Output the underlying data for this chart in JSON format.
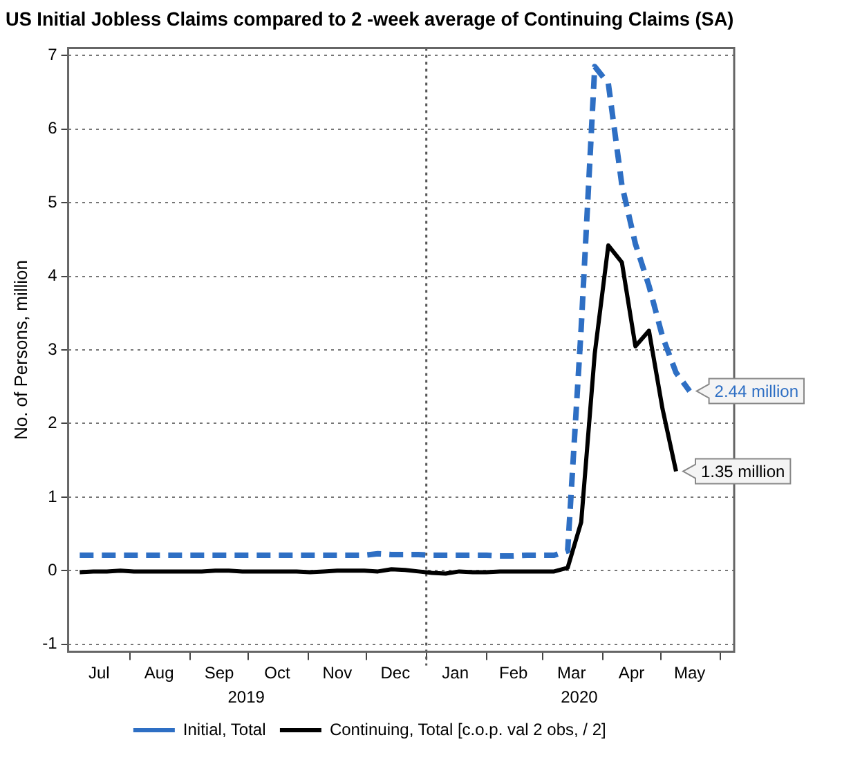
{
  "chart_data": {
    "type": "line",
    "title": "US Initial Jobless Claims compared to 2 -week average of Continuing Claims (SA)",
    "ylabel": "No. of Persons, million",
    "xlim": [
      "2019-06-30",
      "2020-06-08"
    ],
    "xticks": [
      {
        "value": "2019-07-16",
        "label": "Jul"
      },
      {
        "value": "2019-08-01",
        "label": null
      },
      {
        "value": "2019-08-16",
        "label": "Aug"
      },
      {
        "value": "2019-09-01",
        "label": null
      },
      {
        "value": "2019-09-16",
        "label": "Sep"
      },
      {
        "value": "2019-10-01",
        "label": null
      },
      {
        "value": "2019-10-16",
        "label": "Oct"
      },
      {
        "value": "2019-11-01",
        "label": null
      },
      {
        "value": "2019-11-16",
        "label": "Nov"
      },
      {
        "value": "2019-12-01",
        "label": null
      },
      {
        "value": "2019-12-16",
        "label": "Dec"
      },
      {
        "value": "2020-01-01",
        "label": null
      },
      {
        "value": "2020-01-16",
        "label": "Jan"
      },
      {
        "value": "2020-02-01",
        "label": null
      },
      {
        "value": "2020-02-15",
        "label": "Feb"
      },
      {
        "value": "2020-03-01",
        "label": null
      },
      {
        "value": "2020-03-16",
        "label": "Mar"
      },
      {
        "value": "2020-04-01",
        "label": null
      },
      {
        "value": "2020-04-16",
        "label": "Apr"
      },
      {
        "value": "2020-05-01",
        "label": null
      },
      {
        "value": "2020-05-16",
        "label": "May"
      },
      {
        "value": "2020-06-01",
        "label": null
      }
    ],
    "x2lim": [
      "2019-06-30",
      "2020-06-08"
    ],
    "x2ticks": [
      {
        "value": "2019-09-30",
        "label": "2019"
      },
      {
        "value": "2020-03-20",
        "label": "2020"
      }
    ],
    "ylim": [
      -1.1,
      7.1
    ],
    "yticks": [
      -1,
      0,
      1,
      2,
      3,
      4,
      5,
      6,
      7
    ],
    "grid": "y",
    "legend": "bottom",
    "marker": "none",
    "ref_lines": [
      {
        "axis": "x",
        "value": "2020-01-01",
        "label": null,
        "color": "#555555",
        "line_style": "dotted"
      }
    ],
    "series": [
      {
        "name": "Initial, Total",
        "color": "#2e6fc4",
        "line_style": "dashed",
        "x": [
          "2019-07-06",
          "2019-07-13",
          "2019-07-20",
          "2019-07-27",
          "2019-08-03",
          "2019-08-10",
          "2019-08-17",
          "2019-08-24",
          "2019-08-31",
          "2019-09-07",
          "2019-09-14",
          "2019-09-21",
          "2019-09-28",
          "2019-10-05",
          "2019-10-12",
          "2019-10-19",
          "2019-10-26",
          "2019-11-02",
          "2019-11-09",
          "2019-11-16",
          "2019-11-23",
          "2019-11-30",
          "2019-12-07",
          "2019-12-14",
          "2019-12-21",
          "2019-12-28",
          "2020-01-04",
          "2020-01-11",
          "2020-01-18",
          "2020-01-25",
          "2020-02-01",
          "2020-02-08",
          "2020-02-15",
          "2020-02-22",
          "2020-02-29",
          "2020-03-07",
          "2020-03-14",
          "2020-03-21",
          "2020-03-28",
          "2020-04-04",
          "2020-04-11",
          "2020-04-18",
          "2020-04-25",
          "2020-05-02",
          "2020-05-09",
          "2020-05-16"
        ],
        "values": [
          0.21,
          0.21,
          0.21,
          0.21,
          0.21,
          0.21,
          0.21,
          0.21,
          0.21,
          0.21,
          0.21,
          0.21,
          0.21,
          0.21,
          0.21,
          0.21,
          0.21,
          0.21,
          0.21,
          0.21,
          0.21,
          0.21,
          0.23,
          0.22,
          0.22,
          0.22,
          0.21,
          0.21,
          0.21,
          0.21,
          0.21,
          0.2,
          0.2,
          0.21,
          0.21,
          0.21,
          0.27,
          3.3,
          6.85,
          6.62,
          5.24,
          4.44,
          3.87,
          3.18,
          2.69,
          2.44
        ],
        "value_labels": [
          null,
          null,
          null,
          null,
          null,
          null,
          null,
          null,
          null,
          null,
          null,
          null,
          null,
          null,
          null,
          null,
          null,
          null,
          null,
          null,
          null,
          null,
          null,
          null,
          null,
          null,
          null,
          null,
          null,
          null,
          null,
          null,
          null,
          null,
          null,
          null,
          null,
          null,
          null,
          null,
          null,
          null,
          null,
          null,
          null,
          "2.44 million"
        ]
      },
      {
        "name": "Continuing, Total [c.o.p. val 2 obs, / 2]",
        "color": "#000000",
        "line_style": "solid",
        "x": [
          "2019-07-06",
          "2019-07-13",
          "2019-07-20",
          "2019-07-27",
          "2019-08-03",
          "2019-08-10",
          "2019-08-17",
          "2019-08-24",
          "2019-08-31",
          "2019-09-07",
          "2019-09-14",
          "2019-09-21",
          "2019-09-28",
          "2019-10-05",
          "2019-10-12",
          "2019-10-19",
          "2019-10-26",
          "2019-11-02",
          "2019-11-09",
          "2019-11-16",
          "2019-11-23",
          "2019-11-30",
          "2019-12-07",
          "2019-12-14",
          "2019-12-21",
          "2019-12-28",
          "2020-01-04",
          "2020-01-11",
          "2020-01-18",
          "2020-01-25",
          "2020-02-01",
          "2020-02-08",
          "2020-02-15",
          "2020-02-22",
          "2020-02-29",
          "2020-03-07",
          "2020-03-14",
          "2020-03-21",
          "2020-03-28",
          "2020-04-04",
          "2020-04-11",
          "2020-04-18",
          "2020-04-25",
          "2020-05-02",
          "2020-05-09"
        ],
        "values": [
          -0.02,
          -0.01,
          -0.01,
          0,
          -0.01,
          -0.01,
          -0.01,
          -0.01,
          -0.01,
          -0.01,
          0,
          0,
          -0.01,
          -0.01,
          -0.01,
          -0.01,
          -0.01,
          -0.02,
          -0.01,
          0,
          0,
          0,
          -0.01,
          0.02,
          0.01,
          -0.01,
          -0.03,
          -0.04,
          -0.01,
          -0.02,
          -0.02,
          -0.01,
          -0.01,
          -0.01,
          -0.01,
          -0.01,
          0.04,
          0.66,
          2.95,
          4.42,
          4.19,
          3.05,
          3.26,
          2.2,
          1.35
        ],
        "value_labels": [
          null,
          null,
          null,
          null,
          null,
          null,
          null,
          null,
          null,
          null,
          null,
          null,
          null,
          null,
          null,
          null,
          null,
          null,
          null,
          null,
          null,
          null,
          null,
          null,
          null,
          null,
          null,
          null,
          null,
          null,
          null,
          null,
          null,
          null,
          null,
          null,
          null,
          null,
          null,
          null,
          null,
          null,
          null,
          null,
          "1.35 million"
        ]
      }
    ]
  }
}
